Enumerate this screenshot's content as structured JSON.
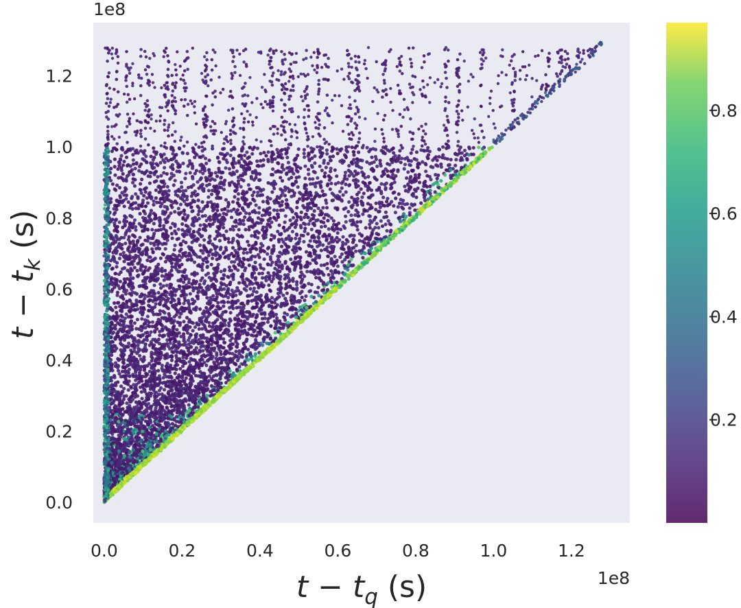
{
  "chart_data": {
    "type": "scatter",
    "title": "",
    "xlabel": "t − t_q (s)",
    "ylabel": "t − t_k (s)",
    "x_offset_label": "1e8",
    "y_offset_label": "1e8",
    "x_scale": 100000000,
    "y_scale": 100000000,
    "xlim": [
      -0.028,
      1.35
    ],
    "ylim": [
      -0.058,
      1.35
    ],
    "x_ticks": [
      0.0,
      0.2,
      0.4,
      0.6,
      0.8,
      1.0,
      1.2
    ],
    "y_ticks": [
      0.0,
      0.2,
      0.4,
      0.6,
      0.8,
      1.0,
      1.2
    ],
    "x_tick_labels": [
      "0.0",
      "0.2",
      "0.4",
      "0.6",
      "0.8",
      "1.0",
      "1.2"
    ],
    "y_tick_labels": [
      "0.0",
      "0.2",
      "0.4",
      "0.6",
      "0.8",
      "1.0",
      "1.2"
    ],
    "grid": false,
    "background_color": "#eaeaf2",
    "colormap": "viridis",
    "point_alpha": 0.6,
    "colorbar": {
      "range": [
        0.0,
        0.97
      ],
      "ticks": [
        0.2,
        0.4,
        0.6,
        0.8
      ],
      "tick_labels": [
        "0.2",
        "0.4",
        "0.6",
        "0.8"
      ],
      "alpha": 0.55
    },
    "region": {
      "description_constraint": "y >= x",
      "x_range": [
        0.0,
        1.28
      ],
      "y_range": [
        0.0,
        1.28
      ],
      "diagonal_value_high": 0.95,
      "interior_value_typical": 0.05
    },
    "sparse_columns_x": [
      0.01,
      0.03,
      0.06,
      0.09,
      0.11,
      0.16,
      0.18,
      0.21,
      0.26,
      0.28,
      0.33,
      0.36,
      0.43,
      0.46,
      0.48,
      0.52,
      0.55,
      0.57,
      0.63,
      0.65,
      0.72,
      0.76,
      0.79,
      0.82,
      0.88,
      0.91,
      0.97,
      1.05,
      1.14,
      1.17,
      1.19,
      1.22,
      1.25
    ]
  }
}
